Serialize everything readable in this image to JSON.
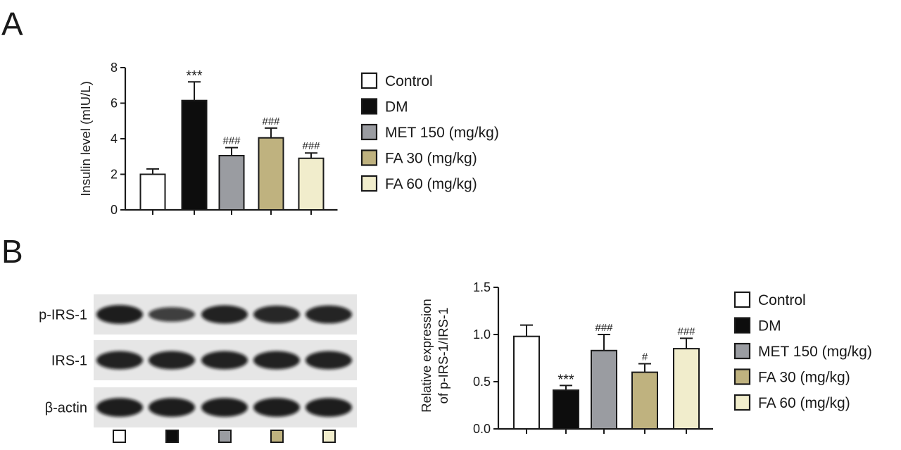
{
  "panels": {
    "a_label": "A",
    "b_label": "B"
  },
  "colors": {
    "control": "#ffffff",
    "dm": "#0d0d0d",
    "met": "#9a9ca1",
    "fa30": "#bfb27f",
    "fa60": "#f1edcc",
    "axis": "#1a1a1a"
  },
  "blot": {
    "rows": [
      "p-IRS-1",
      "IRS-1",
      "β-actin"
    ],
    "band_intensity": [
      [
        0.95,
        0.7,
        0.92,
        0.88,
        0.9
      ],
      [
        0.92,
        0.92,
        0.92,
        0.92,
        0.92
      ],
      [
        0.95,
        0.95,
        0.95,
        0.95,
        0.95
      ]
    ],
    "lane_groups": [
      "Control",
      "DM",
      "MET 150 (mg/kg)",
      "FA 30 (mg/kg)",
      "FA 60 (mg/kg)"
    ]
  },
  "chart_data": [
    {
      "type": "bar",
      "panel": "A",
      "title": "",
      "xlabel": "",
      "ylabel": "Insulin level (mIU/L)",
      "ylim": [
        0,
        8
      ],
      "yticks": [
        0,
        2,
        4,
        6,
        8
      ],
      "tick_labels": [
        "0",
        "2",
        "4",
        "6",
        "8"
      ],
      "categories": [
        "Control",
        "DM",
        "MET 150 (mg/kg)",
        "FA 30 (mg/kg)",
        "FA 60 (mg/kg)"
      ],
      "values": [
        2.0,
        6.15,
        3.05,
        4.05,
        2.9
      ],
      "errors": [
        0.3,
        1.05,
        0.45,
        0.55,
        0.3
      ],
      "annotations": [
        "",
        "***",
        "###",
        "###",
        "###"
      ],
      "legend": [
        "Control",
        "DM",
        "MET 150 (mg/kg)",
        "FA 30 (mg/kg)",
        "FA 60 (mg/kg)"
      ],
      "legend_position": "right",
      "grid": false
    },
    {
      "type": "bar",
      "panel": "B",
      "title": "",
      "xlabel": "",
      "ylabel_lines": [
        "Relative expression",
        "of p-IRS-1/IRS-1"
      ],
      "ylim": [
        0,
        1.5
      ],
      "yticks": [
        0,
        0.5,
        1.0,
        1.5
      ],
      "tick_labels": [
        "0.0",
        "0.5",
        "1.0",
        "1.5"
      ],
      "categories": [
        "Control",
        "DM",
        "MET 150 (mg/kg)",
        "FA 30 (mg/kg)",
        "FA 60 (mg/kg)"
      ],
      "values": [
        0.98,
        0.41,
        0.83,
        0.6,
        0.85
      ],
      "errors": [
        0.12,
        0.05,
        0.17,
        0.09,
        0.11
      ],
      "annotations": [
        "",
        "***",
        "###",
        "#",
        "###"
      ],
      "legend": [
        "Control",
        "DM",
        "MET 150 (mg/kg)",
        "FA 30 (mg/kg)",
        "FA 60 (mg/kg)"
      ],
      "legend_position": "right",
      "grid": false
    }
  ]
}
